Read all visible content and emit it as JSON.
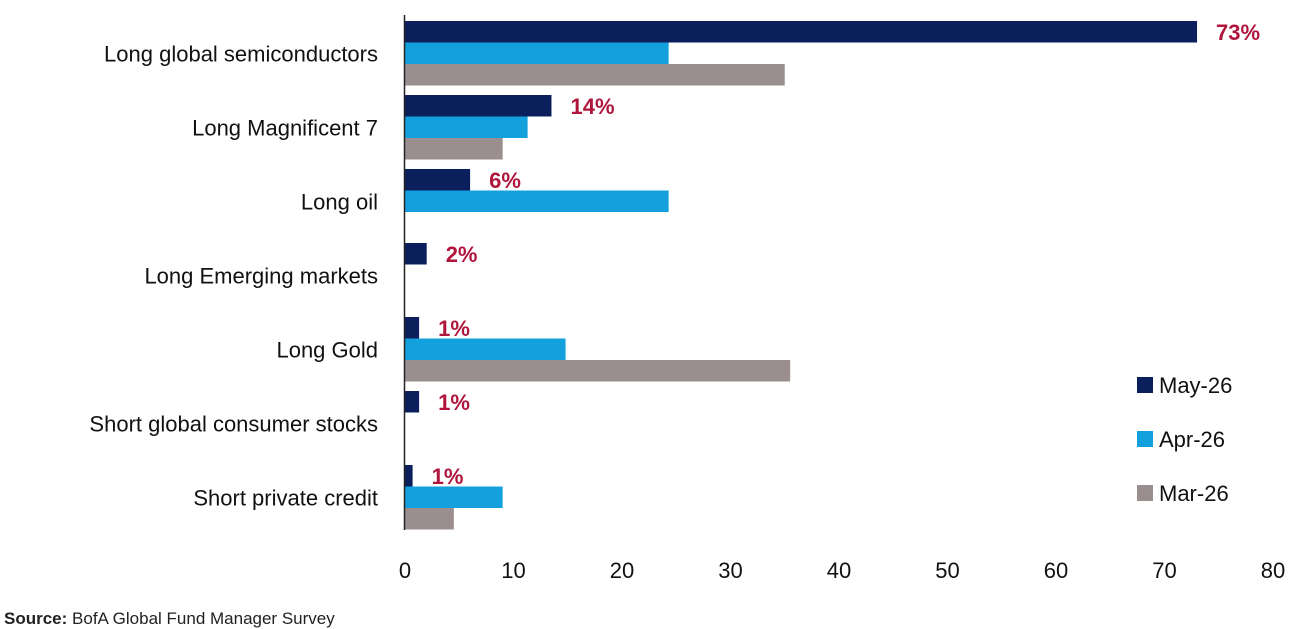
{
  "chart_data": {
    "type": "bar",
    "orientation": "horizontal",
    "categories": [
      "Long global semiconductors",
      "Long Magnificent 7",
      "Long oil",
      "Long Emerging markets",
      "Long Gold",
      "Short global consumer stocks",
      "Short private credit"
    ],
    "series": [
      {
        "name": "May-26",
        "color": "#0b1f5c",
        "values": [
          73,
          13.5,
          6,
          2,
          1.3,
          1.3,
          0.7
        ]
      },
      {
        "name": "Apr-26",
        "color": "#13a0dc",
        "values": [
          24.3,
          11.3,
          24.3,
          0,
          14.8,
          0,
          9
        ]
      },
      {
        "name": "Mar-26",
        "color": "#9b8e8e",
        "values": [
          35,
          9,
          0,
          0,
          35.5,
          0,
          4.5
        ]
      }
    ],
    "data_labels": [
      "73%",
      "14%",
      "6%",
      "2%",
      "1%",
      "1%",
      "1%"
    ],
    "data_label_color": "#b0163c",
    "xlim": [
      0,
      80
    ],
    "xticks": [
      "0",
      "10",
      "20",
      "30",
      "40",
      "50",
      "60",
      "70",
      "80"
    ],
    "grid": false,
    "legend_position": "right"
  },
  "source": {
    "prefix": "Source:",
    "text": " BofA Global Fund Manager Survey"
  }
}
